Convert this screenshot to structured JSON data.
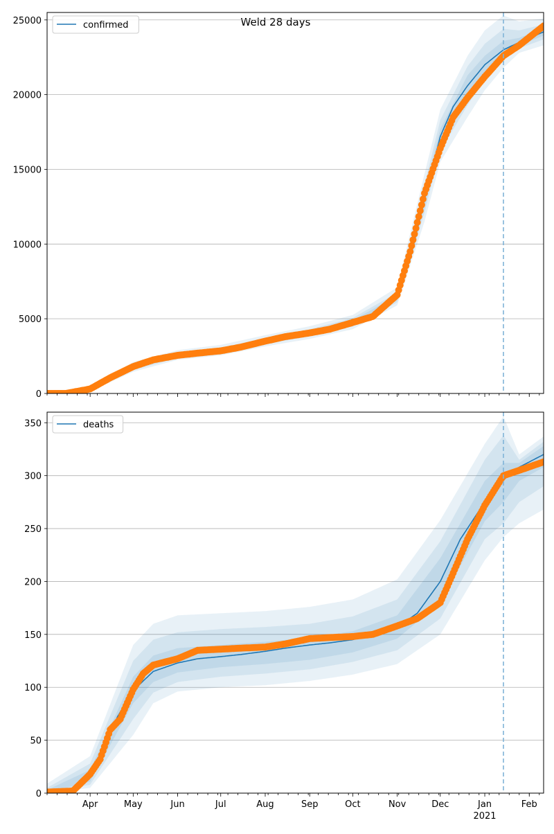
{
  "title": "Weld 28 days",
  "colors": {
    "model": "#1f77b4",
    "observed": "#ff7f0e",
    "band": "#1f77b4",
    "grid": "#b0b0b0",
    "forecast_line": "#7fb3d8"
  },
  "x_axis": {
    "month_labels": [
      {
        "label": "Apr",
        "date": "2020-04-01"
      },
      {
        "label": "May",
        "date": "2020-05-01"
      },
      {
        "label": "Jun",
        "date": "2020-06-01"
      },
      {
        "label": "Jul",
        "date": "2020-07-01"
      },
      {
        "label": "Aug",
        "date": "2020-08-01"
      },
      {
        "label": "Sep",
        "date": "2020-09-01"
      },
      {
        "label": "Oct",
        "date": "2020-10-01"
      },
      {
        "label": "Nov",
        "date": "2020-11-01"
      },
      {
        "label": "Dec",
        "date": "2020-12-01"
      },
      {
        "label": "Jan",
        "date": "2021-01-01"
      },
      {
        "label": "Feb",
        "date": "2021-02-01"
      }
    ],
    "year_label": "2021",
    "range": [
      "2020-03-02",
      "2021-02-11"
    ],
    "forecast_start": "2021-01-14"
  },
  "chart_data": [
    {
      "type": "line",
      "legend": "confirmed",
      "legend_position": "top-left",
      "grid": true,
      "ylim": [
        0,
        25500
      ],
      "yticks": [
        0,
        5000,
        10000,
        15000,
        20000,
        25000
      ],
      "ytick_labels": [
        "0",
        "5000",
        "10000",
        "15000",
        "20000",
        "25000"
      ],
      "series": [
        {
          "name": "confirmed",
          "role": "model",
          "x": [
            "2020-03-02",
            "2020-03-15",
            "2020-04-01",
            "2020-04-15",
            "2020-05-01",
            "2020-05-15",
            "2020-06-01",
            "2020-06-15",
            "2020-07-01",
            "2020-07-15",
            "2020-08-01",
            "2020-08-15",
            "2020-09-01",
            "2020-09-15",
            "2020-10-01",
            "2020-10-15",
            "2020-11-01",
            "2020-11-10",
            "2020-11-20",
            "2020-12-01",
            "2020-12-10",
            "2020-12-20",
            "2021-01-01",
            "2021-01-14",
            "2021-01-25",
            "2021-02-11"
          ],
          "y": [
            0,
            0,
            250,
            1000,
            1750,
            2250,
            2550,
            2700,
            2850,
            3050,
            3500,
            3800,
            4050,
            4300,
            4750,
            5150,
            6400,
            9000,
            13000,
            17200,
            19200,
            20600,
            22000,
            23000,
            23500,
            24200
          ]
        },
        {
          "name": "confirmed observed",
          "role": "observed",
          "x": [
            "2020-03-02",
            "2020-03-15",
            "2020-04-01",
            "2020-04-15",
            "2020-05-01",
            "2020-05-15",
            "2020-06-01",
            "2020-06-15",
            "2020-07-01",
            "2020-07-15",
            "2020-08-01",
            "2020-08-15",
            "2020-09-01",
            "2020-09-15",
            "2020-10-01",
            "2020-10-15",
            "2020-11-01",
            "2020-11-10",
            "2020-11-20",
            "2020-12-01",
            "2020-12-10",
            "2020-12-20",
            "2021-01-01",
            "2021-01-14",
            "2021-01-25",
            "2021-02-11"
          ],
          "y": [
            0,
            0,
            300,
            1050,
            1800,
            2250,
            2550,
            2700,
            2850,
            3100,
            3500,
            3800,
            4050,
            4300,
            4750,
            5150,
            6600,
            9500,
            13400,
            16400,
            18500,
            19800,
            21200,
            22600,
            23300,
            24600
          ]
        }
      ],
      "bands": [
        {
          "level": "outer",
          "x": [
            "2020-03-02",
            "2020-04-01",
            "2020-05-01",
            "2020-06-01",
            "2020-07-01",
            "2020-08-01",
            "2020-09-01",
            "2020-10-01",
            "2020-11-01",
            "2020-11-20",
            "2020-12-01",
            "2020-12-20",
            "2021-01-01",
            "2021-01-14",
            "2021-01-25",
            "2021-02-11"
          ],
          "low": [
            0,
            150,
            1450,
            2250,
            2550,
            3150,
            3650,
            4300,
            5900,
            11500,
            15500,
            18500,
            20300,
            21800,
            22800,
            23300
          ],
          "high": [
            0,
            400,
            2100,
            2900,
            3250,
            3900,
            4500,
            5250,
            7100,
            14700,
            19000,
            22600,
            24300,
            25300,
            24900,
            25100
          ]
        },
        {
          "level": "middle",
          "x": [
            "2020-03-02",
            "2020-04-01",
            "2020-05-01",
            "2020-06-01",
            "2020-07-01",
            "2020-08-01",
            "2020-09-01",
            "2020-10-01",
            "2020-11-01",
            "2020-11-20",
            "2020-12-01",
            "2020-12-20",
            "2021-01-01",
            "2021-01-14",
            "2021-01-25",
            "2021-02-11"
          ],
          "low": [
            0,
            190,
            1570,
            2380,
            2680,
            3300,
            3820,
            4480,
            6100,
            12100,
            16200,
            19300,
            21000,
            22300,
            23100,
            23700
          ],
          "high": [
            0,
            320,
            1950,
            2750,
            3050,
            3720,
            4300,
            5050,
            6750,
            13950,
            18300,
            21900,
            23400,
            24400,
            24300,
            24700
          ]
        },
        {
          "level": "inner",
          "x": [
            "2020-03-02",
            "2020-04-01",
            "2020-05-01",
            "2020-06-01",
            "2020-07-01",
            "2020-08-01",
            "2020-09-01",
            "2020-10-01",
            "2020-11-01",
            "2020-11-20",
            "2020-12-01",
            "2020-12-20",
            "2021-01-01",
            "2021-01-14",
            "2021-01-25",
            "2021-02-11"
          ],
          "low": [
            0,
            220,
            1660,
            2470,
            2770,
            3400,
            3940,
            4600,
            6250,
            12500,
            16700,
            19900,
            21500,
            22650,
            23300,
            23950
          ],
          "high": [
            0,
            280,
            1850,
            2650,
            2940,
            3600,
            4170,
            4900,
            6550,
            13500,
            17700,
            21300,
            22600,
            23600,
            23800,
            24450
          ]
        }
      ]
    },
    {
      "type": "line",
      "legend": "deaths",
      "legend_position": "top-left",
      "grid": true,
      "ylim": [
        0,
        360
      ],
      "yticks": [
        0,
        50,
        100,
        150,
        200,
        250,
        300,
        350
      ],
      "ytick_labels": [
        "0",
        "50",
        "100",
        "150",
        "200",
        "250",
        "300",
        "350"
      ],
      "series": [
        {
          "name": "deaths",
          "role": "model",
          "x": [
            "2020-03-02",
            "2020-03-20",
            "2020-04-01",
            "2020-04-10",
            "2020-04-20",
            "2020-05-01",
            "2020-05-15",
            "2020-06-01",
            "2020-06-15",
            "2020-07-01",
            "2020-07-15",
            "2020-08-01",
            "2020-08-15",
            "2020-09-01",
            "2020-09-15",
            "2020-10-01",
            "2020-10-15",
            "2020-11-01",
            "2020-11-15",
            "2020-12-01",
            "2020-12-15",
            "2021-01-01",
            "2021-01-14",
            "2021-01-25",
            "2021-02-11"
          ],
          "y": [
            0,
            2,
            15,
            40,
            72,
            97,
            115,
            123,
            127,
            129,
            131,
            134,
            137,
            140,
            142,
            145,
            150,
            157,
            170,
            200,
            240,
            275,
            296,
            308,
            320
          ]
        },
        {
          "name": "deaths observed",
          "role": "observed",
          "x": [
            "2020-03-02",
            "2020-03-20",
            "2020-04-01",
            "2020-04-08",
            "2020-04-15",
            "2020-04-22",
            "2020-05-01",
            "2020-05-08",
            "2020-05-15",
            "2020-06-01",
            "2020-06-15",
            "2020-07-01",
            "2020-07-15",
            "2020-08-01",
            "2020-08-15",
            "2020-09-01",
            "2020-09-15",
            "2020-10-01",
            "2020-10-15",
            "2020-11-01",
            "2020-11-15",
            "2020-12-01",
            "2020-12-10",
            "2020-12-20",
            "2021-01-01",
            "2021-01-14",
            "2021-01-25",
            "2021-02-11"
          ],
          "y": [
            1,
            2,
            18,
            32,
            60,
            70,
            98,
            113,
            121,
            127,
            135,
            136,
            137,
            138,
            141,
            146,
            147,
            148,
            150,
            158,
            165,
            180,
            208,
            240,
            272,
            300,
            305,
            313
          ]
        }
      ],
      "bands": [
        {
          "level": "outer",
          "x": [
            "2020-03-02",
            "2020-04-01",
            "2020-05-01",
            "2020-05-15",
            "2020-06-01",
            "2020-07-01",
            "2020-08-01",
            "2020-09-01",
            "2020-10-01",
            "2020-11-01",
            "2020-12-01",
            "2021-01-01",
            "2021-01-14",
            "2021-01-25",
            "2021-02-11"
          ],
          "low": [
            0,
            5,
            55,
            85,
            96,
            100,
            102,
            106,
            112,
            122,
            150,
            220,
            242,
            255,
            268
          ],
          "high": [
            9,
            35,
            140,
            160,
            168,
            170,
            172,
            176,
            183,
            202,
            258,
            330,
            356,
            320,
            337
          ]
        },
        {
          "level": "middle",
          "x": [
            "2020-03-02",
            "2020-04-01",
            "2020-05-01",
            "2020-05-15",
            "2020-06-01",
            "2020-07-01",
            "2020-08-01",
            "2020-09-01",
            "2020-10-01",
            "2020-11-01",
            "2020-12-01",
            "2021-01-01",
            "2021-01-14",
            "2021-01-25",
            "2021-02-11"
          ],
          "low": [
            0,
            8,
            70,
            95,
            105,
            110,
            113,
            117,
            124,
            135,
            165,
            240,
            255,
            275,
            290
          ],
          "high": [
            5,
            28,
            125,
            145,
            152,
            155,
            157,
            160,
            167,
            183,
            238,
            315,
            338,
            315,
            332
          ]
        },
        {
          "level": "inner",
          "x": [
            "2020-03-02",
            "2020-04-01",
            "2020-05-01",
            "2020-05-15",
            "2020-06-01",
            "2020-07-01",
            "2020-08-01",
            "2020-09-01",
            "2020-10-01",
            "2020-11-01",
            "2020-12-01",
            "2021-01-01",
            "2021-01-14",
            "2021-01-25",
            "2021-02-11"
          ],
          "low": [
            0,
            11,
            85,
            105,
            114,
            119,
            122,
            126,
            133,
            146,
            180,
            257,
            275,
            295,
            308
          ],
          "high": [
            3,
            22,
            110,
            130,
            137,
            140,
            143,
            147,
            153,
            168,
            222,
            295,
            312,
            312,
            328
          ]
        }
      ]
    }
  ]
}
